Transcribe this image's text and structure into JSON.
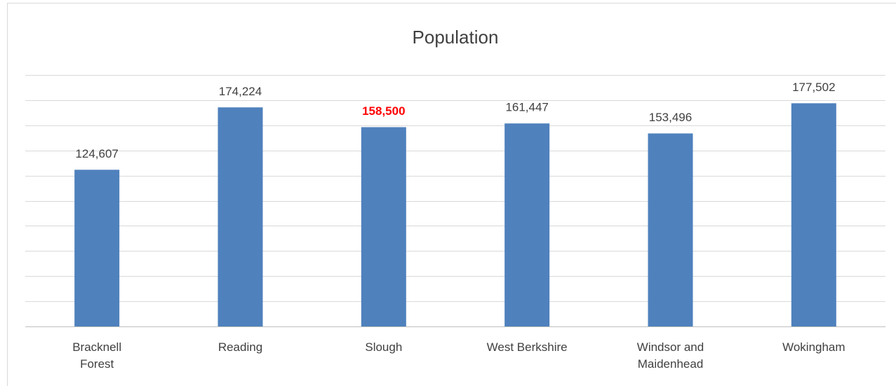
{
  "chart_data": {
    "type": "bar",
    "title": "Population",
    "categories": [
      "Bracknell Forest",
      "Reading",
      "Slough",
      "West Berkshire",
      "Windsor and Maidenhead",
      "Wokingham"
    ],
    "values": [
      124607,
      174224,
      158500,
      161447,
      153496,
      177502
    ],
    "value_labels": [
      "124,607",
      "174,224",
      "158,500",
      "161,447",
      "153,496",
      "177,502"
    ],
    "color": "#4f81bd",
    "highlight": {
      "category": "Slough",
      "color": "#ff0000"
    },
    "ylim": [
      0,
      200000
    ],
    "yticks": [
      0,
      20000,
      40000,
      60000,
      80000,
      100000,
      120000,
      140000,
      160000,
      180000,
      200000
    ],
    "grid": true
  }
}
